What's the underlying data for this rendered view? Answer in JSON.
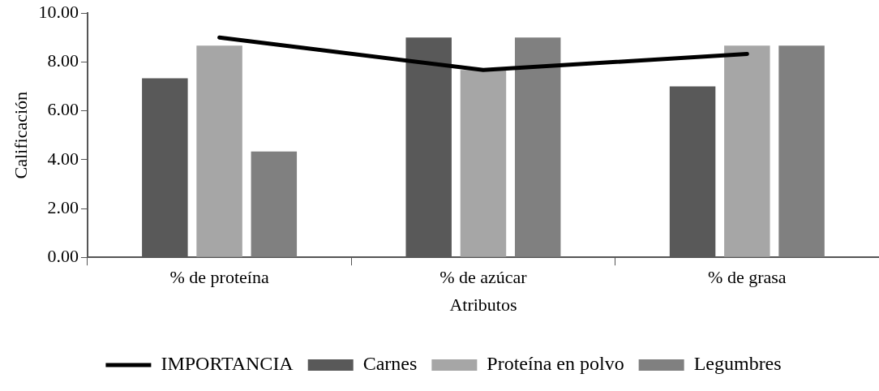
{
  "chart_data": {
    "type": "bar",
    "xlabel": "Atributos",
    "ylabel": "Calificación",
    "categories": [
      "% de proteína",
      "% de azúcar",
      "% de grasa"
    ],
    "series": [
      {
        "name": "Carnes",
        "color": "#595959",
        "values": [
          7.33,
          9.0,
          7.0
        ]
      },
      {
        "name": "Proteína en polvo",
        "color": "#a6a6a6",
        "values": [
          8.67,
          7.67,
          8.67
        ]
      },
      {
        "name": "Legumbres",
        "color": "#808080",
        "values": [
          4.33,
          9.0,
          8.67
        ]
      },
      {
        "name": "IMPORTANCIA",
        "type": "line",
        "color": "#000000",
        "values": [
          9.0,
          7.67,
          8.33
        ]
      }
    ],
    "ylim": [
      0,
      10
    ],
    "yticks": [
      {
        "value": 0,
        "label": "0.00"
      },
      {
        "value": 2,
        "label": "2.00"
      },
      {
        "value": 4,
        "label": "4.00"
      },
      {
        "value": 6,
        "label": "6.00"
      },
      {
        "value": 8,
        "label": "8.00"
      },
      {
        "value": 10,
        "label": "10.00"
      }
    ],
    "grid": false,
    "legend": "bottom",
    "marker": "none"
  }
}
